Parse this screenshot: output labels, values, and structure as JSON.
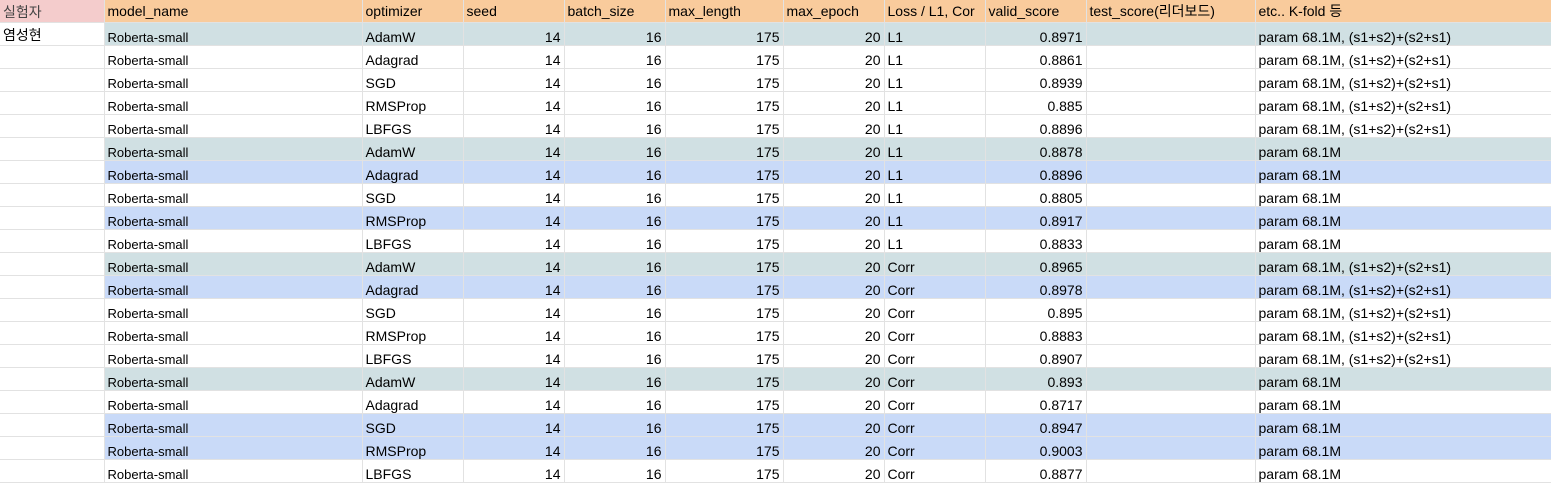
{
  "sheet": {
    "headers": [
      "실험자",
      "model_name",
      "optimizer",
      "seed",
      "batch_size",
      "max_length",
      "max_epoch",
      "Loss / L1, Cor",
      "valid_score",
      "test_score(리더보드)",
      "etc.. K-fold 등"
    ],
    "rows": [
      {
        "experimenter": "염성현",
        "model": "Roberta-small",
        "optimizer": "AdamW",
        "seed": "14",
        "batch_size": "16",
        "max_length": "175",
        "max_epoch": "20",
        "loss": "L1",
        "valid": "0.8971",
        "test": "",
        "etc": "param 68.1M, (s1+s2)+(s2+s1)",
        "highlight": "teal"
      },
      {
        "experimenter": "",
        "model": "Roberta-small",
        "optimizer": "Adagrad",
        "seed": "14",
        "batch_size": "16",
        "max_length": "175",
        "max_epoch": "20",
        "loss": "L1",
        "valid": "0.8861",
        "test": "",
        "etc": "param 68.1M, (s1+s2)+(s2+s1)",
        "highlight": "none"
      },
      {
        "experimenter": "",
        "model": "Roberta-small",
        "optimizer": "SGD",
        "seed": "14",
        "batch_size": "16",
        "max_length": "175",
        "max_epoch": "20",
        "loss": "L1",
        "valid": "0.8939",
        "test": "",
        "etc": "param 68.1M, (s1+s2)+(s2+s1)",
        "highlight": "none"
      },
      {
        "experimenter": "",
        "model": "Roberta-small",
        "optimizer": "RMSProp",
        "seed": "14",
        "batch_size": "16",
        "max_length": "175",
        "max_epoch": "20",
        "loss": "L1",
        "valid": "0.885",
        "test": "",
        "etc": "param 68.1M, (s1+s2)+(s2+s1)",
        "highlight": "none"
      },
      {
        "experimenter": "",
        "model": "Roberta-small",
        "optimizer": "LBFGS",
        "seed": "14",
        "batch_size": "16",
        "max_length": "175",
        "max_epoch": "20",
        "loss": "L1",
        "valid": "0.8896",
        "test": "",
        "etc": "param 68.1M, (s1+s2)+(s2+s1)",
        "highlight": "none"
      },
      {
        "experimenter": "",
        "model": "Roberta-small",
        "optimizer": "AdamW",
        "seed": "14",
        "batch_size": "16",
        "max_length": "175",
        "max_epoch": "20",
        "loss": "L1",
        "valid": "0.8878",
        "test": "",
        "etc": "param 68.1M",
        "highlight": "teal"
      },
      {
        "experimenter": "",
        "model": "Roberta-small",
        "optimizer": "Adagrad",
        "seed": "14",
        "batch_size": "16",
        "max_length": "175",
        "max_epoch": "20",
        "loss": "L1",
        "valid": "0.8896",
        "test": "",
        "etc": "param 68.1M",
        "highlight": "blue"
      },
      {
        "experimenter": "",
        "model": "Roberta-small",
        "optimizer": "SGD",
        "seed": "14",
        "batch_size": "16",
        "max_length": "175",
        "max_epoch": "20",
        "loss": "L1",
        "valid": "0.8805",
        "test": "",
        "etc": "param 68.1M",
        "highlight": "none"
      },
      {
        "experimenter": "",
        "model": "Roberta-small",
        "optimizer": "RMSProp",
        "seed": "14",
        "batch_size": "16",
        "max_length": "175",
        "max_epoch": "20",
        "loss": "L1",
        "valid": "0.8917",
        "test": "",
        "etc": "param 68.1M",
        "highlight": "blue"
      },
      {
        "experimenter": "",
        "model": "Roberta-small",
        "optimizer": "LBFGS",
        "seed": "14",
        "batch_size": "16",
        "max_length": "175",
        "max_epoch": "20",
        "loss": "L1",
        "valid": "0.8833",
        "test": "",
        "etc": "param 68.1M",
        "highlight": "none"
      },
      {
        "experimenter": "",
        "model": "Roberta-small",
        "optimizer": "AdamW",
        "seed": "14",
        "batch_size": "16",
        "max_length": "175",
        "max_epoch": "20",
        "loss": "Corr",
        "valid": "0.8965",
        "test": "",
        "etc": "param 68.1M, (s1+s2)+(s2+s1)",
        "highlight": "teal"
      },
      {
        "experimenter": "",
        "model": "Roberta-small",
        "optimizer": "Adagrad",
        "seed": "14",
        "batch_size": "16",
        "max_length": "175",
        "max_epoch": "20",
        "loss": "Corr",
        "valid": "0.8978",
        "test": "",
        "etc": "param 68.1M, (s1+s2)+(s2+s1)",
        "highlight": "blue"
      },
      {
        "experimenter": "",
        "model": "Roberta-small",
        "optimizer": "SGD",
        "seed": "14",
        "batch_size": "16",
        "max_length": "175",
        "max_epoch": "20",
        "loss": "Corr",
        "valid": "0.895",
        "test": "",
        "etc": "param 68.1M, (s1+s2)+(s2+s1)",
        "highlight": "none"
      },
      {
        "experimenter": "",
        "model": "Roberta-small",
        "optimizer": "RMSProp",
        "seed": "14",
        "batch_size": "16",
        "max_length": "175",
        "max_epoch": "20",
        "loss": "Corr",
        "valid": "0.8883",
        "test": "",
        "etc": "param 68.1M, (s1+s2)+(s2+s1)",
        "highlight": "none"
      },
      {
        "experimenter": "",
        "model": "Roberta-small",
        "optimizer": "LBFGS",
        "seed": "14",
        "batch_size": "16",
        "max_length": "175",
        "max_epoch": "20",
        "loss": "Corr",
        "valid": "0.8907",
        "test": "",
        "etc": "param 68.1M, (s1+s2)+(s2+s1)",
        "highlight": "none"
      },
      {
        "experimenter": "",
        "model": "Roberta-small",
        "optimizer": "AdamW",
        "seed": "14",
        "batch_size": "16",
        "max_length": "175",
        "max_epoch": "20",
        "loss": "Corr",
        "valid": "0.893",
        "test": "",
        "etc": "param 68.1M",
        "highlight": "teal"
      },
      {
        "experimenter": "",
        "model": "Roberta-small",
        "optimizer": "Adagrad",
        "seed": "14",
        "batch_size": "16",
        "max_length": "175",
        "max_epoch": "20",
        "loss": "Corr",
        "valid": "0.8717",
        "test": "",
        "etc": "param 68.1M",
        "highlight": "none"
      },
      {
        "experimenter": "",
        "model": "Roberta-small",
        "optimizer": "SGD",
        "seed": "14",
        "batch_size": "16",
        "max_length": "175",
        "max_epoch": "20",
        "loss": "Corr",
        "valid": "0.8947",
        "test": "",
        "etc": "param 68.1M",
        "highlight": "blue"
      },
      {
        "experimenter": "",
        "model": "Roberta-small",
        "optimizer": "RMSProp",
        "seed": "14",
        "batch_size": "16",
        "max_length": "175",
        "max_epoch": "20",
        "loss": "Corr",
        "valid": "0.9003",
        "test": "",
        "etc": "param 68.1M",
        "highlight": "blue"
      },
      {
        "experimenter": "",
        "model": "Roberta-small",
        "optimizer": "LBFGS",
        "seed": "14",
        "batch_size": "16",
        "max_length": "175",
        "max_epoch": "20",
        "loss": "Corr",
        "valid": "0.8877",
        "test": "",
        "etc": "param 68.1M",
        "highlight": "none"
      }
    ]
  },
  "colors": {
    "header": "#f9cb9c",
    "header_first": "#f4cccc",
    "highlight_teal": "#d0e0e3",
    "highlight_blue": "#c9daf8",
    "grid": "#e2e2e2"
  }
}
